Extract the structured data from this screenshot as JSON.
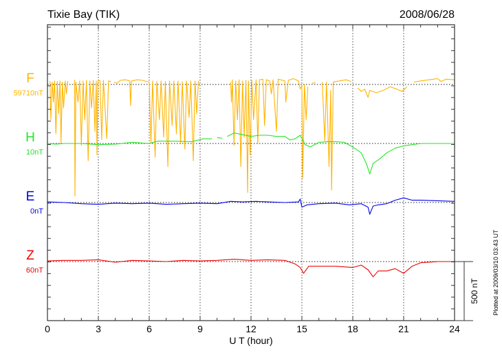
{
  "chart_data": {
    "type": "line",
    "title": "Tixie Bay (TIK)",
    "date": "2008/06/28",
    "xlabel": "U T (hour)",
    "xlim": [
      0,
      24
    ],
    "xticks": [
      "0",
      "3",
      "6",
      "9",
      "12",
      "15",
      "18",
      "21",
      "24"
    ],
    "scale_bar_label": "500 nT",
    "scale_bar_value_nT": 500,
    "plotted_note": "Plotted at 2009/03/10 03:43 UT",
    "grid": "dotted vertical every 3 h, dotted baseline per component",
    "series": [
      {
        "name": "F",
        "offset_label": "59710nT",
        "color": "#ffb400",
        "points": [
          [
            0.15,
            30
          ],
          [
            0.2,
            -300
          ],
          [
            0.28,
            20
          ],
          [
            0.35,
            -150
          ],
          [
            0.42,
            30
          ],
          [
            0.5,
            -420
          ],
          [
            0.58,
            25
          ],
          [
            0.66,
            -250
          ],
          [
            0.74,
            30
          ],
          [
            0.8,
            -500
          ],
          [
            0.88,
            20
          ],
          [
            0.95,
            -200
          ],
          [
            1.05,
            30
          ],
          [
            1.12,
            -80
          ],
          [
            1.2,
            30
          ],
          null,
          [
            1.6,
            40
          ],
          [
            1.62,
            -950
          ],
          [
            1.68,
            20
          ],
          [
            1.8,
            -150
          ],
          [
            1.9,
            30
          ],
          [
            2.0,
            -520
          ],
          [
            2.1,
            30
          ],
          [
            2.2,
            -300
          ],
          [
            2.3,
            35
          ],
          [
            2.4,
            -650
          ],
          [
            2.5,
            30
          ],
          [
            2.6,
            -200
          ],
          [
            2.7,
            35
          ],
          [
            2.8,
            -400
          ],
          [
            2.88,
            30
          ],
          [
            2.92,
            -600
          ],
          [
            2.98,
            40
          ],
          [
            3.1,
            30
          ],
          [
            3.2,
            -470
          ],
          [
            3.3,
            35
          ],
          [
            3.5,
            -460
          ],
          [
            3.6,
            30
          ],
          [
            3.75,
            25
          ],
          null,
          [
            3.95,
            20
          ],
          [
            4.1,
            10
          ],
          [
            4.3,
            35
          ],
          [
            4.6,
            40
          ],
          [
            4.85,
            30
          ],
          [
            4.9,
            -180
          ],
          [
            4.95,
            30
          ],
          [
            5.3,
            40
          ],
          [
            5.6,
            35
          ],
          [
            6.0,
            20
          ],
          [
            6.1,
            -500
          ],
          [
            6.2,
            30
          ],
          [
            6.35,
            -620
          ],
          [
            6.45,
            25
          ],
          [
            6.6,
            -300
          ],
          [
            6.7,
            30
          ],
          [
            6.85,
            -450
          ],
          [
            6.95,
            25
          ],
          [
            7.1,
            -700
          ],
          [
            7.2,
            30
          ],
          [
            7.35,
            -350
          ],
          [
            7.45,
            30
          ],
          [
            7.6,
            -420
          ],
          [
            7.7,
            30
          ],
          [
            7.85,
            -500
          ],
          [
            7.95,
            25
          ],
          [
            8.1,
            -550
          ],
          [
            8.2,
            30
          ],
          [
            8.35,
            -280
          ],
          [
            8.45,
            30
          ],
          [
            8.6,
            -650
          ],
          [
            8.7,
            30
          ],
          [
            8.8,
            -250
          ],
          [
            8.9,
            30
          ],
          null,
          [
            10.8,
            20
          ],
          [
            10.85,
            -150
          ],
          [
            10.9,
            40
          ],
          [
            11.0,
            -520
          ],
          [
            11.1,
            30
          ],
          [
            11.2,
            -300
          ],
          [
            11.3,
            40
          ],
          [
            11.4,
            -700
          ],
          [
            11.5,
            30
          ],
          [
            11.6,
            -450
          ],
          [
            11.7,
            35
          ],
          [
            11.8,
            -920
          ],
          [
            11.85,
            30
          ],
          [
            11.95,
            -600
          ],
          [
            12.05,
            35
          ],
          [
            12.15,
            -300
          ],
          [
            12.3,
            40
          ],
          [
            12.4,
            -500
          ],
          [
            12.5,
            40
          ],
          [
            12.7,
            45
          ],
          [
            12.8,
            -350
          ],
          [
            12.9,
            40
          ],
          [
            13.1,
            30
          ],
          [
            13.2,
            -80
          ],
          [
            13.3,
            40
          ],
          [
            13.5,
            -400
          ],
          [
            13.6,
            45
          ],
          [
            14.0,
            30
          ],
          [
            14.05,
            -150
          ],
          [
            14.2,
            35
          ],
          [
            14.5,
            50
          ],
          [
            14.8,
            30
          ],
          [
            14.9,
            -40
          ],
          [
            15.0,
            -10
          ],
          [
            15.05,
            -800
          ],
          [
            15.15,
            0
          ],
          [
            15.25,
            -300
          ],
          [
            15.35,
            -20
          ],
          null,
          [
            15.6,
            10
          ],
          [
            15.8,
            15
          ],
          null,
          [
            16.2,
            20
          ],
          [
            16.35,
            -480
          ],
          [
            16.45,
            20
          ],
          [
            16.6,
            -700
          ],
          [
            16.7,
            -50
          ],
          [
            16.75,
            -900
          ],
          [
            16.85,
            20
          ],
          [
            17.2,
            30
          ],
          [
            17.6,
            40
          ],
          [
            17.9,
            25
          ],
          null,
          [
            18.3,
            -30
          ],
          [
            18.5,
            -60
          ],
          [
            18.7,
            -40
          ],
          [
            18.9,
            -110
          ],
          [
            19.0,
            -50
          ],
          [
            19.4,
            -70
          ],
          [
            19.8,
            -50
          ],
          [
            20.2,
            -20
          ],
          [
            20.6,
            -40
          ],
          [
            20.9,
            -60
          ],
          [
            21.2,
            -20
          ],
          null,
          [
            21.6,
            20
          ],
          [
            22.0,
            30
          ],
          [
            22.5,
            40
          ],
          [
            23.0,
            50
          ],
          [
            23.2,
            25
          ],
          [
            23.5,
            45
          ],
          [
            24.0,
            40
          ]
        ]
      },
      {
        "name": "H",
        "offset_label": "10nT",
        "color": "#22e622",
        "points": [
          [
            0,
            0
          ],
          [
            0.5,
            -5
          ],
          [
            1.0,
            0
          ],
          [
            2.0,
            0
          ],
          [
            3.0,
            -10
          ],
          [
            4.0,
            -5
          ],
          [
            5.0,
            10
          ],
          [
            6.0,
            0
          ],
          [
            6.5,
            20
          ],
          [
            7.5,
            20
          ],
          [
            8.5,
            15
          ],
          [
            9.2,
            40
          ],
          [
            9.7,
            40
          ],
          null,
          [
            10.0,
            50
          ],
          [
            10.3,
            45
          ],
          null,
          [
            10.6,
            60
          ],
          [
            11.0,
            90
          ],
          [
            11.5,
            75
          ],
          [
            12.0,
            60
          ],
          [
            12.5,
            70
          ],
          [
            13.0,
            70
          ],
          [
            13.5,
            60
          ],
          [
            14.0,
            60
          ],
          [
            14.3,
            30
          ],
          [
            14.6,
            40
          ],
          [
            14.9,
            70
          ],
          [
            15.2,
            -10
          ],
          [
            15.5,
            -30
          ],
          [
            16.0,
            10
          ],
          [
            16.5,
            15
          ],
          [
            17.0,
            15
          ],
          [
            17.5,
            10
          ],
          [
            18.0,
            -30
          ],
          [
            18.5,
            -80
          ],
          [
            18.8,
            -170
          ],
          [
            19.0,
            -260
          ],
          [
            19.2,
            -170
          ],
          [
            19.6,
            -130
          ],
          [
            20.0,
            -80
          ],
          [
            20.5,
            -40
          ],
          [
            21.0,
            -20
          ],
          [
            21.5,
            -10
          ],
          [
            22.0,
            0
          ],
          [
            23.0,
            0
          ],
          [
            24.0,
            0
          ]
        ]
      },
      {
        "name": "E",
        "offset_label": "0nT",
        "color": "#0000ee",
        "points": [
          [
            0,
            5
          ],
          [
            1,
            0
          ],
          [
            2,
            -10
          ],
          [
            3,
            -15
          ],
          [
            4,
            -5
          ],
          [
            5,
            -10
          ],
          [
            6,
            -5
          ],
          [
            7,
            -15
          ],
          [
            8,
            -10
          ],
          [
            9,
            -5
          ],
          [
            10,
            -10
          ],
          [
            10.8,
            10
          ],
          [
            11.5,
            5
          ],
          [
            12.3,
            10
          ],
          [
            13,
            5
          ],
          [
            14,
            0
          ],
          [
            14.8,
            5
          ],
          [
            14.9,
            30
          ],
          [
            15.0,
            -40
          ],
          [
            15.3,
            -20
          ],
          [
            16,
            -10
          ],
          [
            17,
            -5
          ],
          [
            17.8,
            -20
          ],
          [
            18.5,
            -10
          ],
          [
            18.9,
            -40
          ],
          [
            19.0,
            -100
          ],
          [
            19.2,
            -30
          ],
          [
            19.5,
            -20
          ],
          [
            20,
            -10
          ],
          [
            20.5,
            20
          ],
          [
            21,
            40
          ],
          [
            21.5,
            20
          ],
          [
            22,
            20
          ],
          [
            23,
            15
          ],
          [
            24,
            10
          ]
        ]
      },
      {
        "name": "Z",
        "offset_label": "60nT",
        "color": "#ee0000",
        "points": [
          [
            0,
            5
          ],
          [
            1,
            10
          ],
          [
            2,
            10
          ],
          [
            3,
            15
          ],
          [
            4,
            -5
          ],
          [
            5,
            10
          ],
          [
            6,
            5
          ],
          [
            7,
            0
          ],
          [
            8,
            10
          ],
          [
            9,
            5
          ],
          [
            10,
            10
          ],
          [
            11,
            20
          ],
          [
            12,
            10
          ],
          [
            13,
            15
          ],
          [
            14,
            10
          ],
          [
            14.6,
            -20
          ],
          [
            14.9,
            -50
          ],
          [
            15.1,
            -100
          ],
          [
            15.4,
            -40
          ],
          [
            16,
            -40
          ],
          [
            17,
            -40
          ],
          [
            18,
            -50
          ],
          [
            18.5,
            -30
          ],
          [
            18.9,
            -70
          ],
          [
            19.2,
            -130
          ],
          [
            19.5,
            -80
          ],
          [
            20,
            -80
          ],
          [
            20.5,
            -60
          ],
          [
            21,
            -100
          ],
          [
            21.5,
            -40
          ],
          [
            22,
            -10
          ],
          [
            23,
            0
          ],
          [
            24,
            0
          ]
        ]
      }
    ]
  }
}
